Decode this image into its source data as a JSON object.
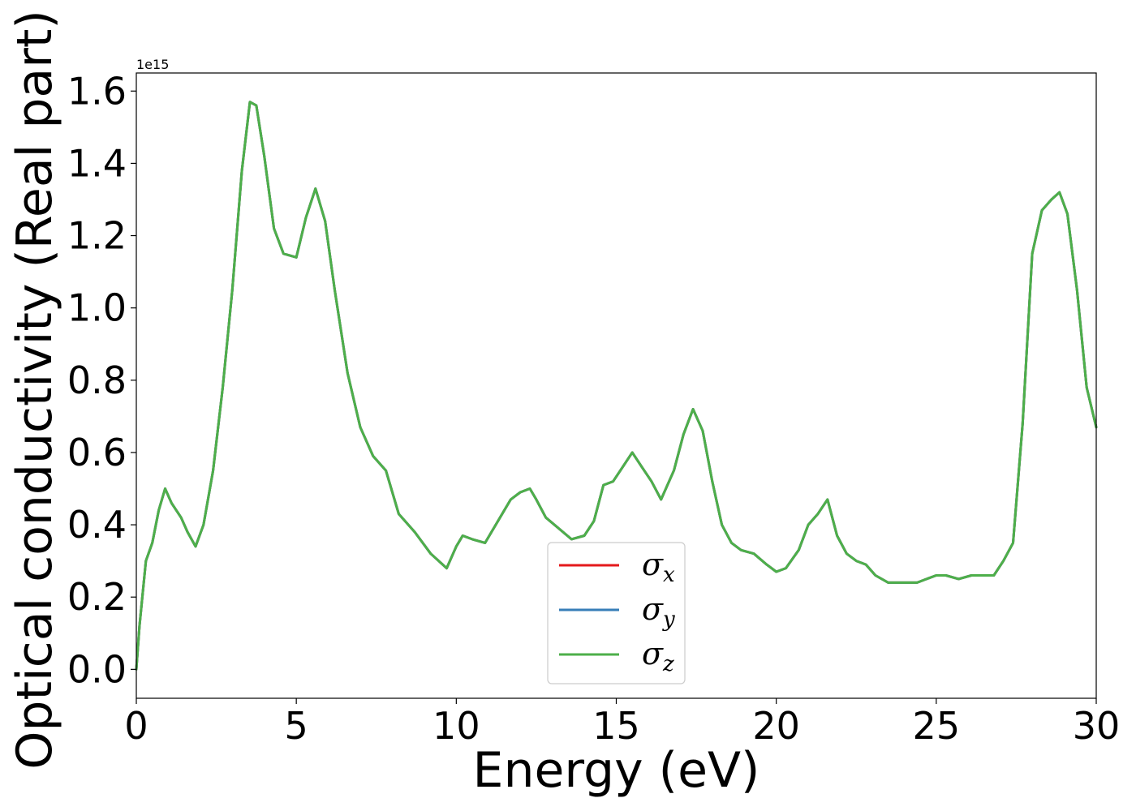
{
  "chart_data": {
    "type": "line",
    "xlabel": "Energy (eV)",
    "ylabel": "Optical conductivity (Real part)",
    "y_offset_label": "1e15",
    "xlim": [
      0,
      30
    ],
    "ylim": [
      -0.08,
      1.65
    ],
    "xticks": [
      0,
      5,
      10,
      15,
      20,
      25,
      30
    ],
    "xtick_labels": [
      "0",
      "5",
      "10",
      "15",
      "20",
      "25",
      "30"
    ],
    "yticks": [
      0.0,
      0.2,
      0.4,
      0.6,
      0.8,
      1.0,
      1.2,
      1.4,
      1.6
    ],
    "ytick_labels": [
      "0.0",
      "0.2",
      "0.4",
      "0.6",
      "0.8",
      "1.0",
      "1.2",
      "1.4",
      "1.6"
    ],
    "grid": false,
    "legend_position": "lower-center",
    "x": [
      0,
      0.1,
      0.3,
      0.5,
      0.7,
      0.9,
      1.1,
      1.4,
      1.6,
      1.85,
      2.1,
      2.4,
      2.7,
      3.0,
      3.3,
      3.55,
      3.75,
      4.0,
      4.3,
      4.6,
      5.0,
      5.3,
      5.6,
      5.9,
      6.2,
      6.6,
      7.0,
      7.4,
      7.8,
      8.2,
      8.7,
      9.2,
      9.7,
      10.0,
      10.2,
      10.5,
      10.9,
      11.3,
      11.7,
      12.0,
      12.3,
      12.5,
      12.8,
      13.2,
      13.6,
      14.0,
      14.3,
      14.6,
      14.9,
      15.2,
      15.5,
      15.8,
      16.1,
      16.4,
      16.8,
      17.1,
      17.4,
      17.7,
      18.0,
      18.3,
      18.6,
      18.9,
      19.3,
      19.7,
      20.0,
      20.3,
      20.7,
      21.0,
      21.3,
      21.6,
      21.9,
      22.2,
      22.5,
      22.8,
      23.1,
      23.5,
      23.8,
      24.1,
      24.4,
      24.7,
      25.0,
      25.3,
      25.7,
      26.1,
      26.5,
      26.8,
      27.1,
      27.4,
      27.7,
      28.0,
      28.3,
      28.6,
      28.85,
      29.1,
      29.4,
      29.7,
      30.0
    ],
    "series": [
      {
        "name": "σx",
        "label_base": "σ",
        "label_sub": "x",
        "color": "#e41a1c",
        "values": [
          0.0,
          0.12,
          0.3,
          0.35,
          0.44,
          0.5,
          0.46,
          0.42,
          0.38,
          0.34,
          0.4,
          0.55,
          0.78,
          1.05,
          1.38,
          1.57,
          1.56,
          1.42,
          1.22,
          1.15,
          1.14,
          1.25,
          1.33,
          1.24,
          1.05,
          0.82,
          0.67,
          0.59,
          0.55,
          0.43,
          0.38,
          0.32,
          0.28,
          0.34,
          0.37,
          0.36,
          0.35,
          0.41,
          0.47,
          0.49,
          0.5,
          0.47,
          0.42,
          0.39,
          0.36,
          0.37,
          0.41,
          0.51,
          0.52,
          0.56,
          0.6,
          0.56,
          0.52,
          0.47,
          0.55,
          0.65,
          0.72,
          0.66,
          0.52,
          0.4,
          0.35,
          0.33,
          0.32,
          0.29,
          0.27,
          0.28,
          0.33,
          0.4,
          0.43,
          0.47,
          0.37,
          0.32,
          0.3,
          0.29,
          0.26,
          0.24,
          0.24,
          0.24,
          0.24,
          0.25,
          0.26,
          0.26,
          0.25,
          0.26,
          0.26,
          0.26,
          0.3,
          0.35,
          0.68,
          1.15,
          1.27,
          1.3,
          1.32,
          1.26,
          1.05,
          0.78,
          0.67
        ]
      },
      {
        "name": "σy",
        "label_base": "σ",
        "label_sub": "y",
        "color": "#377eb8",
        "values": [
          0.0,
          0.12,
          0.3,
          0.35,
          0.44,
          0.5,
          0.46,
          0.42,
          0.38,
          0.34,
          0.4,
          0.55,
          0.78,
          1.05,
          1.38,
          1.57,
          1.56,
          1.42,
          1.22,
          1.15,
          1.14,
          1.25,
          1.33,
          1.24,
          1.05,
          0.82,
          0.67,
          0.59,
          0.55,
          0.43,
          0.38,
          0.32,
          0.28,
          0.34,
          0.37,
          0.36,
          0.35,
          0.41,
          0.47,
          0.49,
          0.5,
          0.47,
          0.42,
          0.39,
          0.36,
          0.37,
          0.41,
          0.51,
          0.52,
          0.56,
          0.6,
          0.56,
          0.52,
          0.47,
          0.55,
          0.65,
          0.72,
          0.66,
          0.52,
          0.4,
          0.35,
          0.33,
          0.32,
          0.29,
          0.27,
          0.28,
          0.33,
          0.4,
          0.43,
          0.47,
          0.37,
          0.32,
          0.3,
          0.29,
          0.26,
          0.24,
          0.24,
          0.24,
          0.24,
          0.25,
          0.26,
          0.26,
          0.25,
          0.26,
          0.26,
          0.26,
          0.3,
          0.35,
          0.68,
          1.15,
          1.27,
          1.3,
          1.32,
          1.26,
          1.05,
          0.78,
          0.67
        ]
      },
      {
        "name": "σz",
        "label_base": "σ",
        "label_sub": "z",
        "color": "#4daf4a",
        "values": [
          0.0,
          0.12,
          0.3,
          0.35,
          0.44,
          0.5,
          0.46,
          0.42,
          0.38,
          0.34,
          0.4,
          0.55,
          0.78,
          1.05,
          1.38,
          1.57,
          1.56,
          1.42,
          1.22,
          1.15,
          1.14,
          1.25,
          1.33,
          1.24,
          1.05,
          0.82,
          0.67,
          0.59,
          0.55,
          0.43,
          0.38,
          0.32,
          0.28,
          0.34,
          0.37,
          0.36,
          0.35,
          0.41,
          0.47,
          0.49,
          0.5,
          0.47,
          0.42,
          0.39,
          0.36,
          0.37,
          0.41,
          0.51,
          0.52,
          0.56,
          0.6,
          0.56,
          0.52,
          0.47,
          0.55,
          0.65,
          0.72,
          0.66,
          0.52,
          0.4,
          0.35,
          0.33,
          0.32,
          0.29,
          0.27,
          0.28,
          0.33,
          0.4,
          0.43,
          0.47,
          0.37,
          0.32,
          0.3,
          0.29,
          0.26,
          0.24,
          0.24,
          0.24,
          0.24,
          0.25,
          0.26,
          0.26,
          0.25,
          0.26,
          0.26,
          0.26,
          0.3,
          0.35,
          0.68,
          1.15,
          1.27,
          1.3,
          1.32,
          1.26,
          1.05,
          0.78,
          0.67
        ]
      }
    ]
  }
}
